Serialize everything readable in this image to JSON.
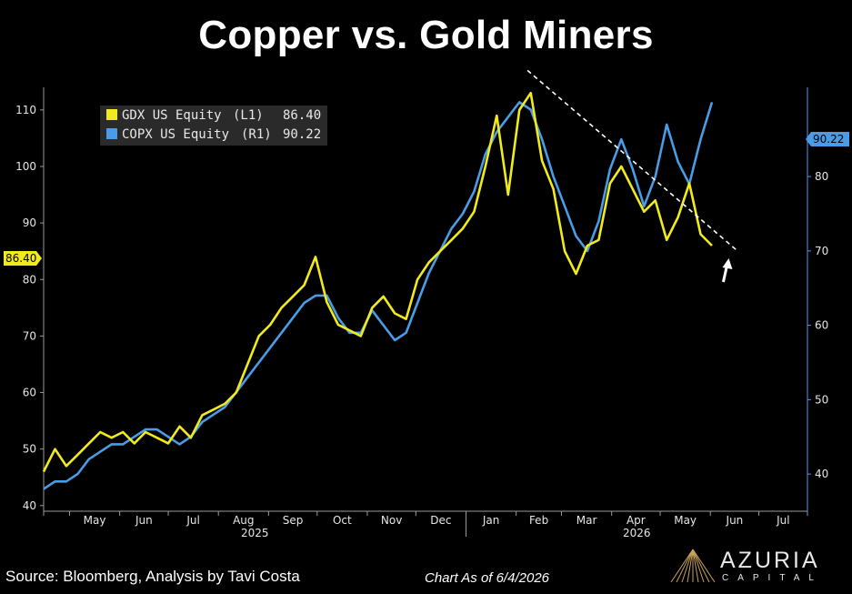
{
  "page": {
    "title": "Copper vs. Gold Miners"
  },
  "footer": {
    "source": "Source: Bloomberg, Analysis by Tavi Costa",
    "as_of": "Chart As of 6/4/2026"
  },
  "logo": {
    "name": "AZURIA",
    "sub": "CAPITAL"
  },
  "colors": {
    "gdx": "#f2eb1c",
    "copx": "#4a9ce6",
    "trendline": "#ffffff",
    "background": "#000000"
  },
  "chart_data": {
    "type": "line",
    "title": "Copper vs. Gold Miners",
    "legend": {
      "placement": "top-left",
      "entries": [
        {
          "label": "GDX US Equity",
          "axis": "(L1)",
          "last": "86.40"
        },
        {
          "label": "COPX US Equity",
          "axis": "(R1)",
          "last": "90.22"
        }
      ]
    },
    "left_axis": {
      "ylim": [
        39,
        114
      ],
      "ticks": [
        40,
        50,
        60,
        70,
        80,
        90,
        100,
        110
      ]
    },
    "right_axis": {
      "ylim": [
        35,
        92
      ],
      "ticks": [
        40,
        50,
        60,
        70,
        80
      ]
    },
    "x_axis": {
      "month_ticks": [
        "May",
        "Jun",
        "Jul",
        "Aug",
        "Sep",
        "Oct",
        "Nov",
        "Dec",
        "Jan",
        "Feb",
        "Mar",
        "Apr",
        "May",
        "Jun",
        "Jul"
      ],
      "year_labels": [
        "2025",
        "2026"
      ]
    },
    "grid": false,
    "last_value_tags": {
      "left": "86.40",
      "right": "90.22"
    },
    "annotation": "dashed downtrend line on GDX from Feb 2026 peak, with up arrow",
    "series": [
      {
        "name": "GDX US Equity",
        "axis": "left",
        "x": [
          "2025-04-15",
          "2025-04-22",
          "2025-04-29",
          "2025-05-06",
          "2025-05-13",
          "2025-05-20",
          "2025-05-27",
          "2025-06-03",
          "2025-06-10",
          "2025-06-17",
          "2025-06-24",
          "2025-07-01",
          "2025-07-08",
          "2025-07-15",
          "2025-07-22",
          "2025-07-29",
          "2025-08-05",
          "2025-08-12",
          "2025-08-19",
          "2025-08-26",
          "2025-09-02",
          "2025-09-09",
          "2025-09-16",
          "2025-09-23",
          "2025-09-30",
          "2025-10-07",
          "2025-10-14",
          "2025-10-21",
          "2025-10-28",
          "2025-11-04",
          "2025-11-11",
          "2025-11-18",
          "2025-11-25",
          "2025-12-02",
          "2025-12-09",
          "2025-12-16",
          "2025-12-23",
          "2025-12-30",
          "2026-01-06",
          "2026-01-13",
          "2026-01-20",
          "2026-01-27",
          "2026-02-03",
          "2026-02-10",
          "2026-02-17",
          "2026-02-24",
          "2026-03-03",
          "2026-03-10",
          "2026-03-17",
          "2026-03-24",
          "2026-03-31",
          "2026-04-07",
          "2026-04-14",
          "2026-04-21",
          "2026-04-28",
          "2026-05-05",
          "2026-05-12",
          "2026-05-19",
          "2026-05-26",
          "2026-06-02"
        ],
        "values": [
          46,
          50,
          47,
          49,
          51,
          53,
          52,
          53,
          51,
          53,
          52,
          51,
          54,
          52,
          56,
          57,
          58,
          60,
          65,
          70,
          72,
          75,
          77,
          79,
          84,
          76,
          72,
          71,
          70,
          75,
          77,
          74,
          73,
          80,
          83,
          85,
          87,
          89,
          92,
          100,
          109,
          95,
          110,
          113,
          101,
          96,
          85,
          81,
          86,
          87,
          97,
          100,
          96,
          92,
          94,
          87,
          91,
          97,
          88,
          86
        ]
      },
      {
        "name": "COPX US Equity",
        "axis": "right",
        "x": [
          "2025-04-15",
          "2025-04-22",
          "2025-04-29",
          "2025-05-06",
          "2025-05-13",
          "2025-05-20",
          "2025-05-27",
          "2025-06-03",
          "2025-06-10",
          "2025-06-17",
          "2025-06-24",
          "2025-07-01",
          "2025-07-08",
          "2025-07-15",
          "2025-07-22",
          "2025-07-29",
          "2025-08-05",
          "2025-08-12",
          "2025-08-19",
          "2025-08-26",
          "2025-09-02",
          "2025-09-09",
          "2025-09-16",
          "2025-09-23",
          "2025-09-30",
          "2025-10-07",
          "2025-10-14",
          "2025-10-21",
          "2025-10-28",
          "2025-11-04",
          "2025-11-11",
          "2025-11-18",
          "2025-11-25",
          "2025-12-02",
          "2025-12-09",
          "2025-12-16",
          "2025-12-23",
          "2025-12-30",
          "2026-01-06",
          "2026-01-13",
          "2026-01-20",
          "2026-01-27",
          "2026-02-03",
          "2026-02-10",
          "2026-02-17",
          "2026-02-24",
          "2026-03-03",
          "2026-03-10",
          "2026-03-17",
          "2026-03-24",
          "2026-03-31",
          "2026-04-07",
          "2026-04-14",
          "2026-04-21",
          "2026-04-28",
          "2026-05-05",
          "2026-05-12",
          "2026-05-19",
          "2026-05-26",
          "2026-06-02"
        ],
        "values": [
          38,
          39,
          39,
          40,
          42,
          43,
          44,
          44,
          45,
          46,
          46,
          45,
          44,
          45,
          47,
          48,
          49,
          51,
          53,
          55,
          57,
          59,
          61,
          63,
          64,
          64,
          61,
          59,
          59,
          62,
          60,
          58,
          59,
          63,
          67,
          70,
          73,
          75,
          78,
          83,
          86,
          88,
          90,
          89,
          85,
          80,
          76,
          72,
          70,
          74,
          81,
          85,
          81,
          76,
          80,
          87,
          82,
          79,
          85,
          90
        ]
      }
    ]
  }
}
